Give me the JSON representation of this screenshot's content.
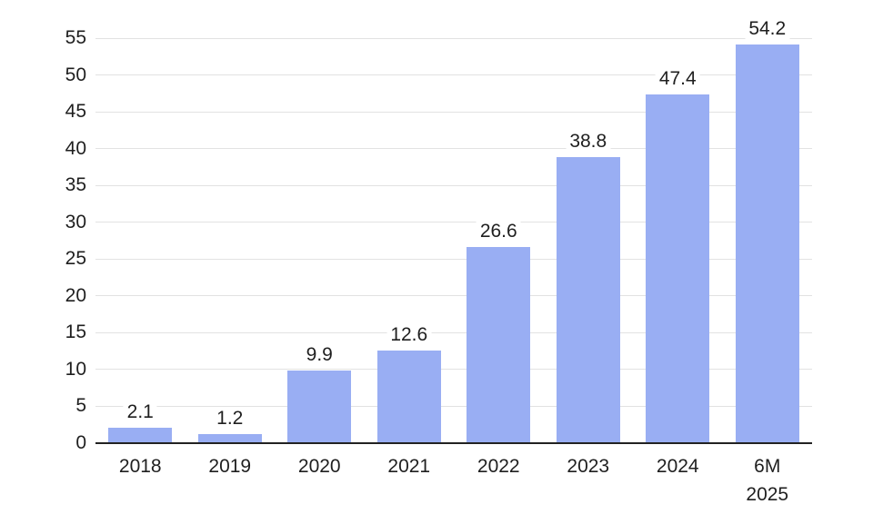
{
  "chart_data": {
    "type": "bar",
    "title": "",
    "xlabel": "",
    "ylabel": "",
    "categories": [
      "2018",
      "2019",
      "2020",
      "2021",
      "2022",
      "2023",
      "2024",
      "6M\n2025"
    ],
    "values": [
      2.1,
      1.2,
      9.9,
      12.6,
      26.6,
      38.8,
      47.4,
      54.2
    ],
    "data_labels": [
      "2.1",
      "1.2",
      "9.9",
      "12.6",
      "26.6",
      "38.8",
      "47.4",
      "54.2"
    ],
    "ylim": [
      0,
      55
    ],
    "ytick_step": 5,
    "ytick_labels": [
      "0",
      "5",
      "10",
      "15",
      "20",
      "25",
      "30",
      "35",
      "40",
      "45",
      "50",
      "55"
    ],
    "grid": "horizontal",
    "legend": "none",
    "colors": {
      "bar": "#99aef3",
      "gridline": "#e2e2e2",
      "axis_line": "#222222",
      "text": "#1f1f1f",
      "background": "#ffffff"
    }
  }
}
